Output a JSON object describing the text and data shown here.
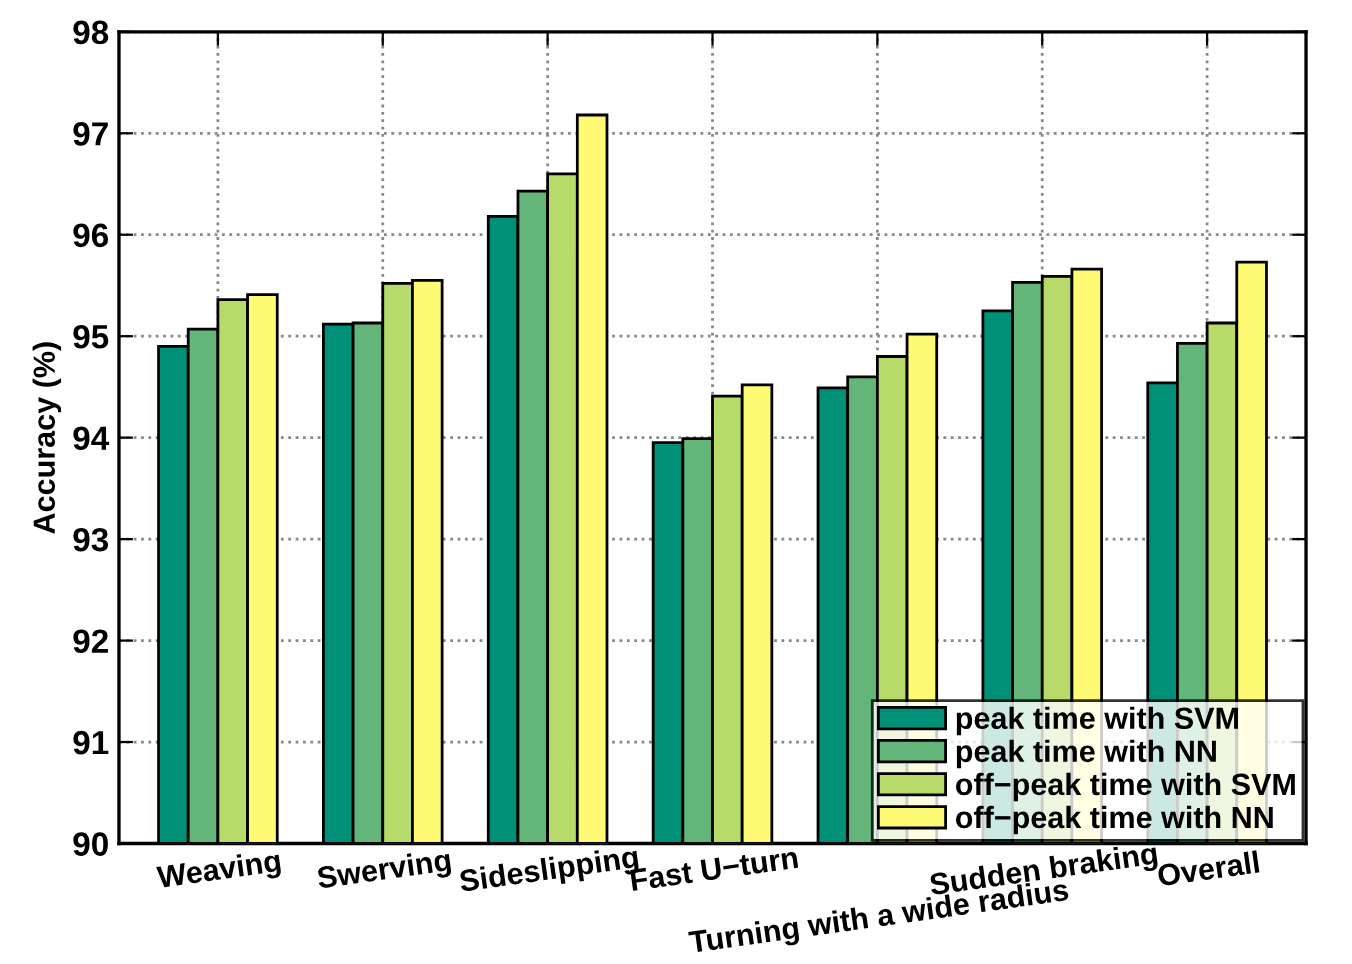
{
  "chart_data": {
    "type": "bar",
    "ylabel": "Accuracy (%)",
    "categories": [
      "Weaving",
      "Swerving",
      "Sideslipping",
      "Fast U−turn",
      "Turning with a wide radius",
      "Sudden braking",
      "Overall"
    ],
    "series": [
      {
        "name": "peak time with SVM",
        "color": "#008f77",
        "values": [
          94.9,
          95.12,
          96.18,
          93.95,
          94.49,
          95.25,
          94.54
        ]
      },
      {
        "name": "peak time with NN",
        "color": "#63b57a",
        "values": [
          95.07,
          95.13,
          96.43,
          93.99,
          94.6,
          95.53,
          94.93
        ]
      },
      {
        "name": "off−peak time with SVM",
        "color": "#b7da6a",
        "values": [
          95.36,
          95.52,
          96.6,
          94.41,
          94.8,
          95.59,
          95.13
        ]
      },
      {
        "name": "off−peak time with NN",
        "color": "#fffa73",
        "values": [
          95.41,
          95.55,
          97.18,
          94.52,
          95.02,
          95.66,
          95.73
        ]
      }
    ],
    "ylim": [
      90,
      98
    ],
    "yticks": [
      90,
      91,
      92,
      93,
      94,
      95,
      96,
      97,
      98
    ],
    "grid": true,
    "legend": "bottom right"
  }
}
